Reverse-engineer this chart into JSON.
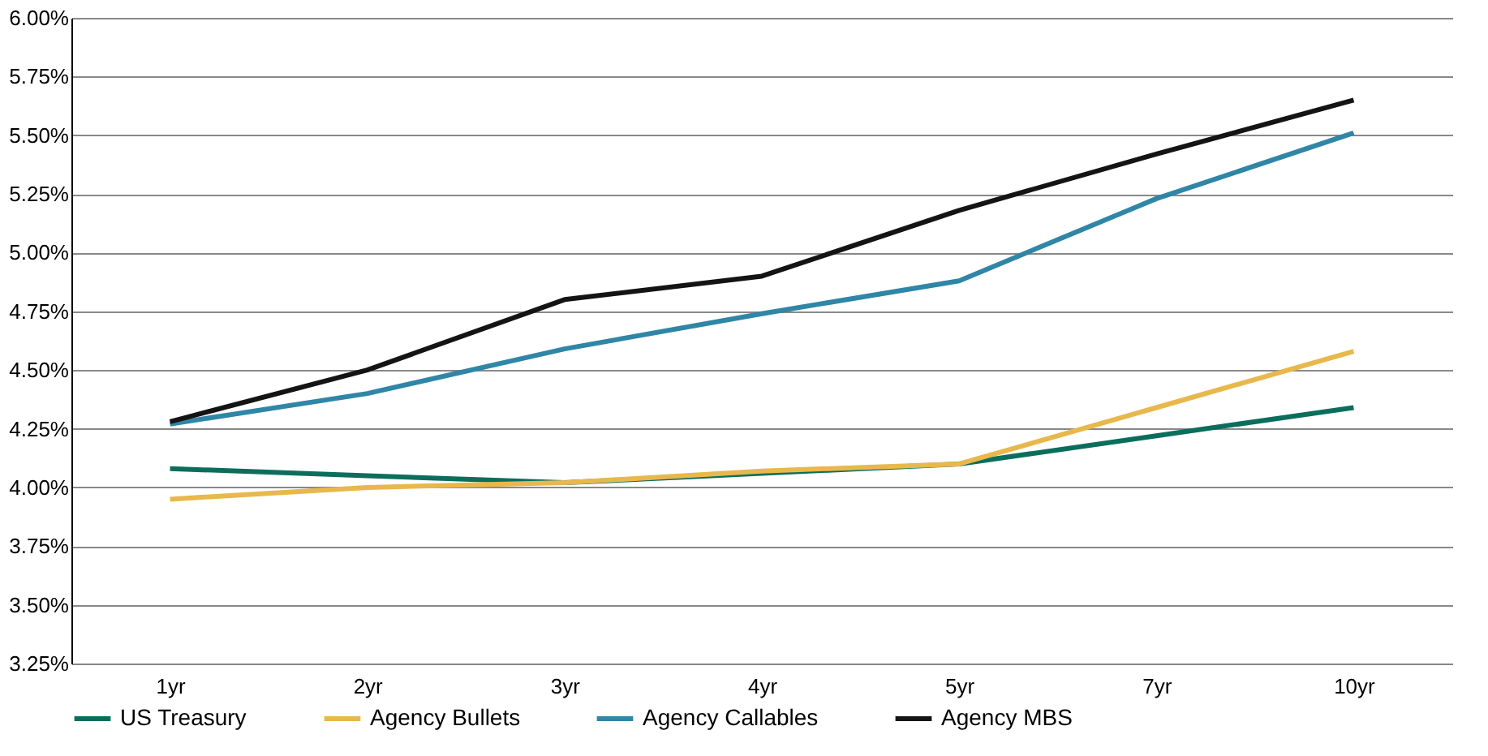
{
  "chart_data": {
    "type": "line",
    "categories": [
      "1yr",
      "2yr",
      "3yr",
      "4yr",
      "5yr",
      "7yr",
      "10yr"
    ],
    "series": [
      {
        "name": "US Treasury",
        "color": "#0b6e5c",
        "values": [
          4.08,
          4.05,
          4.02,
          4.06,
          4.1,
          4.22,
          4.34
        ]
      },
      {
        "name": "Agency Bullets",
        "color": "#e8b84c",
        "values": [
          3.95,
          4.0,
          4.02,
          4.07,
          4.1,
          4.34,
          4.58
        ]
      },
      {
        "name": "Agency Callables",
        "color": "#2f86a6",
        "values": [
          4.27,
          4.4,
          4.59,
          4.74,
          4.88,
          5.23,
          5.51
        ]
      },
      {
        "name": "Agency MBS",
        "color": "#141414",
        "values": [
          4.28,
          4.5,
          4.8,
          4.9,
          5.18,
          5.42,
          5.65
        ]
      }
    ],
    "ylim": [
      3.25,
      6.0
    ],
    "yticks": [
      {
        "value": 3.25,
        "label": "3.25%"
      },
      {
        "value": 3.5,
        "label": "3.50%"
      },
      {
        "value": 3.75,
        "label": "3.75%"
      },
      {
        "value": 4.0,
        "label": "4.00%"
      },
      {
        "value": 4.25,
        "label": "4.25%"
      },
      {
        "value": 4.5,
        "label": "4.50%"
      },
      {
        "value": 4.75,
        "label": "4.75%"
      },
      {
        "value": 5.0,
        "label": "5.00%"
      },
      {
        "value": 5.25,
        "label": "5.25%"
      },
      {
        "value": 5.5,
        "label": "5.50%"
      },
      {
        "value": 5.75,
        "label": "5.75%"
      },
      {
        "value": 6.0,
        "label": "6.00%"
      }
    ],
    "grid": "y",
    "legend": "bottom",
    "line_style": "solid",
    "marker": "none"
  }
}
